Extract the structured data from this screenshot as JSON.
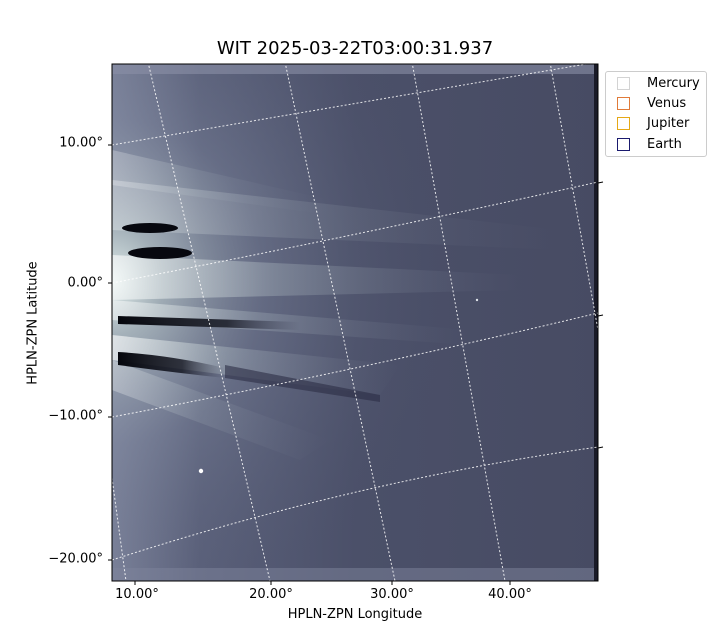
{
  "figure": {
    "title": "WIT 2025-03-22T03:00:31.937",
    "xlabel": "HPLN-ZPN Longitude",
    "ylabel": "HPLN-ZPN Latitude",
    "x_ticks": [
      "10.00°",
      "20.00°",
      "30.00°",
      "40.00°"
    ],
    "y_ticks": [
      "10.00°",
      "0.00°",
      "−10.00°",
      "−20.00°"
    ],
    "image_subject": "coronagraph-streamers",
    "colormap": [
      "#2b2d45",
      "#4a4f6a",
      "#8a93a8",
      "#d8ece6",
      "#ffffff"
    ],
    "grid": true
  },
  "legend": {
    "items": [
      {
        "label": "Mercury",
        "color": "#d3d3d3"
      },
      {
        "label": "Venus",
        "color": "#e07b39"
      },
      {
        "label": "Jupiter",
        "color": "#e6a817"
      },
      {
        "label": "Earth",
        "color": "#1a1a6e"
      }
    ]
  }
}
